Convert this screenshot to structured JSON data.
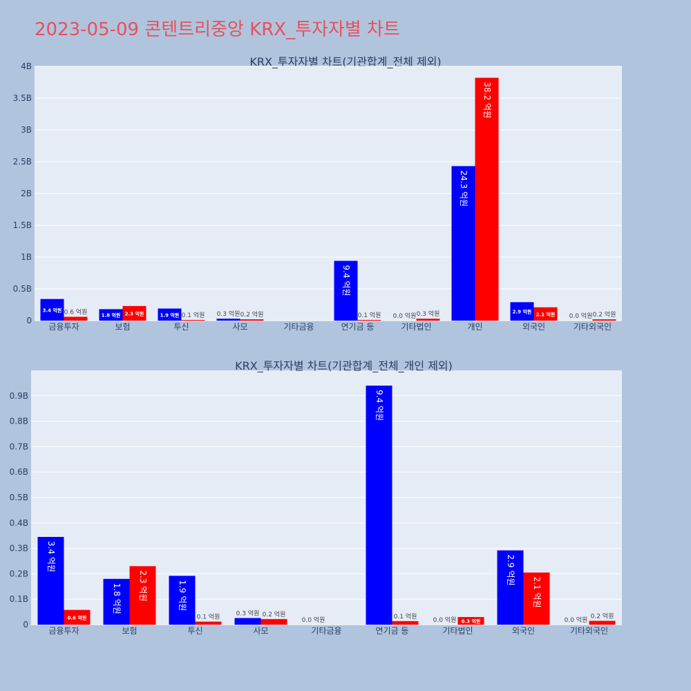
{
  "page_title": "2023-05-09 콘텐트리중앙 KRX_투자자별 차트",
  "colors": {
    "background": "#b0c4de",
    "plot_bg": "#e5ecf6",
    "buy": "#0000ff",
    "sell": "#ff0000",
    "title": "#e8505b"
  },
  "chart_data": [
    {
      "type": "bar",
      "title": "KRX_투자자별 차트(기관합계_전체 제외)",
      "categories": [
        "금융투자",
        "보험",
        "투신",
        "사모",
        "기타금융",
        "연기금 등",
        "기타법인",
        "개인",
        "외국인",
        "기타외국인"
      ],
      "ylim": [
        0,
        4000000000
      ],
      "yticks": [
        0,
        500000000,
        1000000000,
        1500000000,
        2000000000,
        2500000000,
        3000000000,
        3500000000,
        4000000000
      ],
      "ytick_labels": [
        "0",
        "0.5B",
        "1B",
        "1.5B",
        "2B",
        "2.5B",
        "3B",
        "3.5B",
        "4B"
      ],
      "grid": true,
      "series": [
        {
          "color": "#0000ff",
          "values": [
            340000000,
            180000000,
            190000000,
            30000000,
            0,
            940000000,
            0,
            2430000000,
            290000000,
            0
          ],
          "labels": [
            "3.4 억원",
            "1.8 억원",
            "1.9 억원",
            "0.3 억원",
            "",
            "9.4 억원",
            "0.0 억원",
            "24.3 억원",
            "2.9 억원",
            "0.0 억원"
          ]
        },
        {
          "color": "#ff0000",
          "values": [
            60000000,
            230000000,
            10000000,
            20000000,
            0,
            10000000,
            30000000,
            3820000000,
            210000000,
            20000000
          ],
          "labels": [
            "0.6 억원",
            "2.3 억원",
            "0.1 억원",
            "0.2 억원",
            "",
            "0.1 억원",
            "0.3 억원",
            "38.2 억원",
            "2.1 억원",
            "0.2 억원"
          ]
        }
      ]
    },
    {
      "type": "bar",
      "title": "KRX_투자자별 차트(기관합계_전체_개인 제외)",
      "categories": [
        "금융투자",
        "보험",
        "투신",
        "사모",
        "기타금융",
        "연기금 등",
        "기타법인",
        "외국인",
        "기타외국인"
      ],
      "ylim": [
        0,
        1000000000
      ],
      "yticks": [
        0,
        100000000,
        200000000,
        300000000,
        400000000,
        500000000,
        600000000,
        700000000,
        800000000,
        900000000
      ],
      "ytick_labels": [
        "0",
        "0.1B",
        "0.2B",
        "0.3B",
        "0.4B",
        "0.5B",
        "0.6B",
        "0.7B",
        "0.8B",
        "0.9B"
      ],
      "grid": true,
      "series": [
        {
          "color": "#0000ff",
          "values": [
            345000000,
            180000000,
            192000000,
            26000000,
            0,
            940000000,
            0,
            292000000,
            0
          ],
          "labels": [
            "3.4 억원",
            "1.8 억원",
            "1.9 억원",
            "0.3 억원",
            "0.0 억원",
            "9.4 억원",
            "0.0 억원",
            "2.9 억원",
            "0.0 억원"
          ]
        },
        {
          "color": "#ff0000",
          "values": [
            58000000,
            230000000,
            12000000,
            22000000,
            0,
            14000000,
            30000000,
            205000000,
            15000000
          ],
          "labels": [
            "0.6 억원",
            "2.3 억원",
            "0.1 억원",
            "0.2 억원",
            "",
            "0.1 억원",
            "0.3 억원",
            "2.1 억원",
            "0.2 억원"
          ]
        }
      ]
    }
  ]
}
